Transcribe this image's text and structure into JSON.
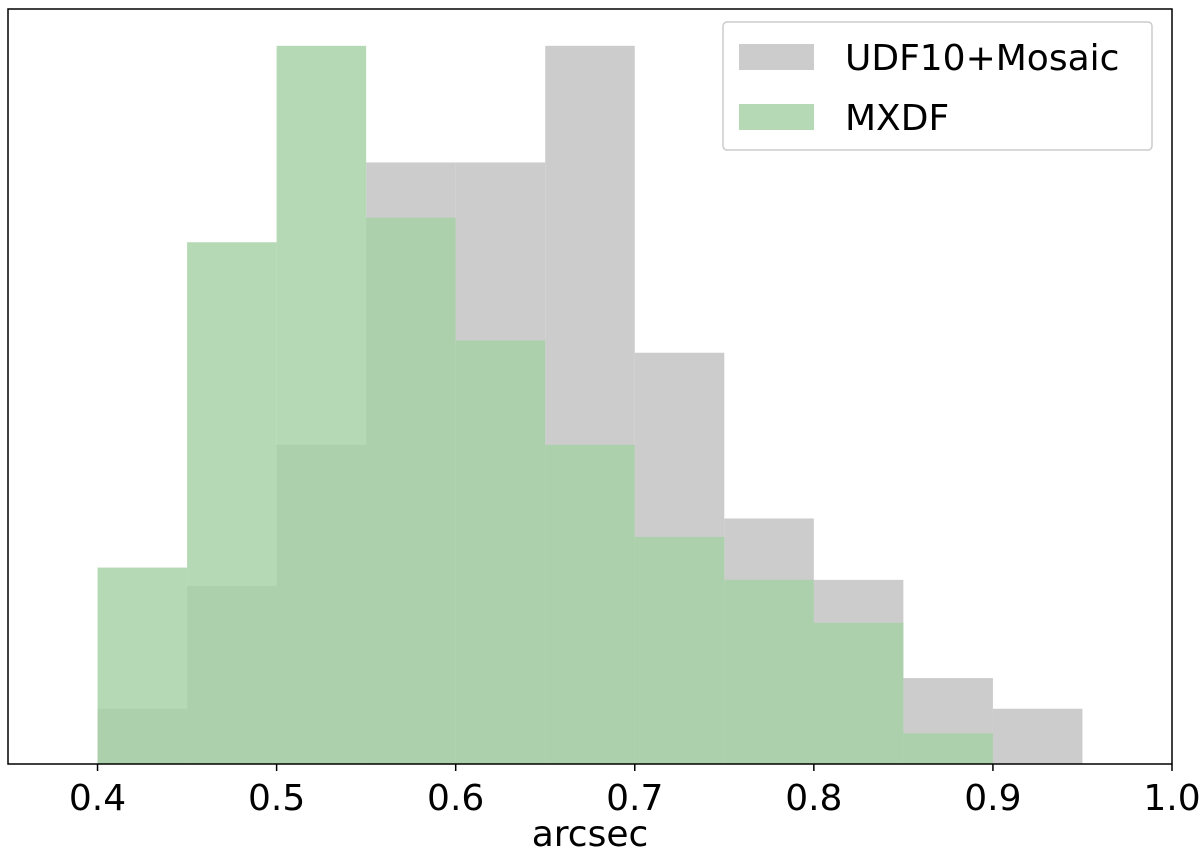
{
  "chart_data": {
    "type": "bar",
    "title": "",
    "xlabel": "arcsec",
    "ylabel": "",
    "xlim": [
      0.4,
      1.0
    ],
    "ylim": [
      0,
      123
    ],
    "grid": false,
    "legend_placement": "top-right",
    "bin_edges": [
      0.4,
      0.45,
      0.5,
      0.55,
      0.6,
      0.65,
      0.7,
      0.75,
      0.8,
      0.85,
      0.9,
      0.95
    ],
    "x_ticks": [
      "0.4",
      "0.5",
      "0.6",
      "0.7",
      "0.8",
      "0.9",
      "1.0"
    ],
    "series": [
      {
        "name": "UDF10+Mosaic",
        "color": "#bfbfbf",
        "opacity": 0.8,
        "values": [
          9,
          29,
          52,
          98,
          98,
          117,
          67,
          40,
          30,
          14,
          9,
          2
        ]
      },
      {
        "name": "MXDF",
        "color": "#a3d1a3",
        "opacity": 0.82,
        "values": [
          32,
          85,
          117,
          89,
          69,
          52,
          37,
          30,
          23,
          5,
          0
        ]
      }
    ]
  }
}
